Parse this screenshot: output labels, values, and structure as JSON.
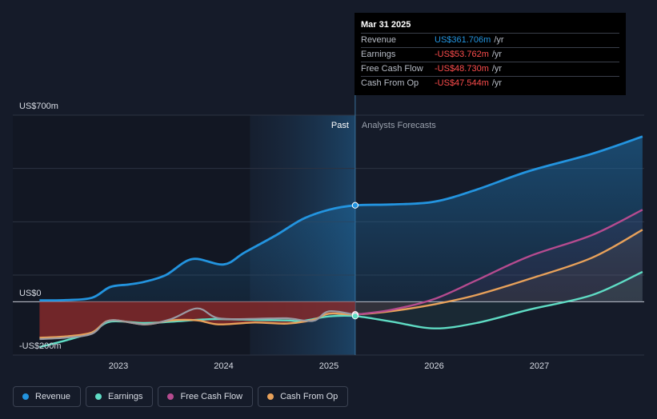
{
  "chart_data": {
    "type": "line",
    "y_unit_label_top": "US$700m",
    "y_unit_label_zero": "US$0",
    "y_unit_label_bottom": "-US$200m",
    "ylim": [
      -200,
      700
    ],
    "x_ticks": [
      "2023",
      "2024",
      "2025",
      "2026",
      "2027"
    ],
    "past_label": "Past",
    "forecast_label": "Analysts Forecasts",
    "series": [
      {
        "name": "Revenue",
        "color": "#2394df",
        "points": [
          [
            2022.25,
            5
          ],
          [
            2022.5,
            6
          ],
          [
            2022.75,
            15
          ],
          [
            2022.92,
            55
          ],
          [
            2023.1,
            65
          ],
          [
            2023.25,
            75
          ],
          [
            2023.45,
            100
          ],
          [
            2023.7,
            160
          ],
          [
            2024.0,
            140
          ],
          [
            2024.2,
            185
          ],
          [
            2024.5,
            250
          ],
          [
            2024.75,
            310
          ],
          [
            2025.0,
            345
          ],
          [
            2025.25,
            361.706
          ],
          [
            2025.6,
            365
          ],
          [
            2026.0,
            375
          ],
          [
            2026.4,
            420
          ],
          [
            2026.9,
            490
          ],
          [
            2027.5,
            555
          ],
          [
            2027.98,
            620
          ]
        ]
      },
      {
        "name": "Earnings",
        "color": "#5fdcc4",
        "points": [
          [
            2022.25,
            -170
          ],
          [
            2022.5,
            -145
          ],
          [
            2022.75,
            -115
          ],
          [
            2022.92,
            -75
          ],
          [
            2023.25,
            -80
          ],
          [
            2023.5,
            -75
          ],
          [
            2023.75,
            -68
          ],
          [
            2023.95,
            -65
          ],
          [
            2024.3,
            -68
          ],
          [
            2024.6,
            -70
          ],
          [
            2024.75,
            -72
          ],
          [
            2025.0,
            -55
          ],
          [
            2025.25,
            -53.762
          ],
          [
            2025.6,
            -75
          ],
          [
            2026.0,
            -100
          ],
          [
            2026.4,
            -80
          ],
          [
            2026.9,
            -30
          ],
          [
            2027.5,
            25
          ],
          [
            2027.98,
            112
          ]
        ]
      },
      {
        "name": "Free Cash Flow",
        "color": "#b54b8f",
        "points": [
          [
            2022.25,
            -140
          ],
          [
            2022.5,
            -135
          ],
          [
            2022.75,
            -120
          ],
          [
            2022.92,
            -70
          ],
          [
            2023.25,
            -85
          ],
          [
            2023.5,
            -65
          ],
          [
            2023.75,
            -25
          ],
          [
            2023.95,
            -62
          ],
          [
            2024.3,
            -64
          ],
          [
            2024.6,
            -62
          ],
          [
            2024.85,
            -72
          ],
          [
            2025.0,
            -36
          ],
          [
            2025.25,
            -48.73
          ],
          [
            2025.6,
            -30
          ],
          [
            2026.0,
            10
          ],
          [
            2026.4,
            80
          ],
          [
            2026.9,
            170
          ],
          [
            2027.5,
            250
          ],
          [
            2027.98,
            345
          ]
        ]
      },
      {
        "name": "Cash From Op",
        "color": "#e8a15a",
        "points": [
          [
            2022.25,
            -135
          ],
          [
            2022.5,
            -130
          ],
          [
            2022.75,
            -115
          ],
          [
            2022.92,
            -70
          ],
          [
            2023.25,
            -85
          ],
          [
            2023.5,
            -70
          ],
          [
            2023.75,
            -70
          ],
          [
            2023.95,
            -85
          ],
          [
            2024.3,
            -78
          ],
          [
            2024.6,
            -82
          ],
          [
            2024.85,
            -68
          ],
          [
            2025.0,
            -45
          ],
          [
            2025.25,
            -47.544
          ],
          [
            2025.6,
            -35
          ],
          [
            2026.0,
            -10
          ],
          [
            2026.4,
            25
          ],
          [
            2026.9,
            85
          ],
          [
            2027.5,
            165
          ],
          [
            2027.98,
            270
          ]
        ]
      }
    ]
  },
  "tooltip": {
    "date": "Mar 31 2025",
    "rows": [
      {
        "label": "Revenue",
        "value": "US$361.706m",
        "unit": "/yr",
        "color": "#2394df"
      },
      {
        "label": "Earnings",
        "value": "-US$53.762m",
        "unit": "/yr",
        "color": "#ff4d4d"
      },
      {
        "label": "Free Cash Flow",
        "value": "-US$48.730m",
        "unit": "/yr",
        "color": "#ff4d4d"
      },
      {
        "label": "Cash From Op",
        "value": "-US$47.544m",
        "unit": "/yr",
        "color": "#ff4d4d"
      }
    ]
  },
  "legend": [
    {
      "label": "Revenue",
      "color": "#2394df"
    },
    {
      "label": "Earnings",
      "color": "#5fdcc4"
    },
    {
      "label": "Free Cash Flow",
      "color": "#b54b8f"
    },
    {
      "label": "Cash From Op",
      "color": "#e8a15a"
    }
  ]
}
